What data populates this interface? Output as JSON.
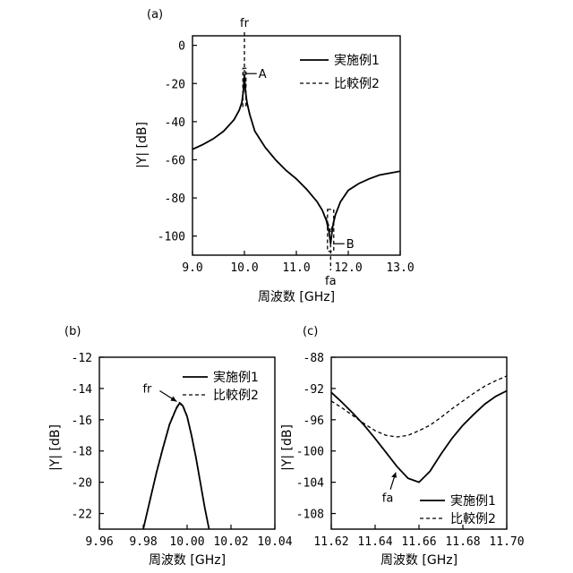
{
  "chart_data": [
    {
      "id": "a",
      "type": "line",
      "panel_label": "(a)",
      "xlabel": "周波数 [GHz]",
      "ylabel": "|Y| [dB]",
      "xlim": [
        9.0,
        13.0
      ],
      "ylim": [
        -110,
        5
      ],
      "xticks": [
        9.0,
        10.0,
        11.0,
        12.0,
        13.0
      ],
      "xtick_labels": [
        "9.0",
        "10.0",
        "11.0",
        "12.0",
        "13.0"
      ],
      "yticks": [
        0,
        -20,
        -40,
        -60,
        -80,
        -100
      ],
      "ytick_labels": [
        "0",
        "-20",
        "-40",
        "-60",
        "-80",
        "-100"
      ],
      "legend_position": "top-right",
      "series": [
        {
          "name": "実施例1",
          "style": "solid",
          "x": [
            9.0,
            9.2,
            9.4,
            9.6,
            9.8,
            9.9,
            9.95,
            9.98,
            10.0,
            10.02,
            10.05,
            10.1,
            10.2,
            10.4,
            10.6,
            10.8,
            11.0,
            11.2,
            11.4,
            11.5,
            11.58,
            11.63,
            11.66,
            11.7,
            11.75,
            11.85,
            12.0,
            12.2,
            12.4,
            12.6,
            12.8,
            13.0
          ],
          "y": [
            -54.5,
            -52.0,
            -49.0,
            -45.0,
            -39.0,
            -34.0,
            -30.0,
            -24.0,
            -15.0,
            -24.0,
            -30.0,
            -36.0,
            -45.0,
            -53.5,
            -60.0,
            -65.5,
            -70.0,
            -75.5,
            -82.0,
            -86.5,
            -92.0,
            -98.0,
            -104.0,
            -95.0,
            -89.0,
            -82.0,
            -76.0,
            -72.5,
            -70.0,
            -68.0,
            -67.0,
            -66.0
          ]
        },
        {
          "name": "比較例2",
          "style": "dashed",
          "x": [
            9.0,
            9.2,
            9.4,
            9.6,
            9.8,
            9.9,
            9.95,
            9.98,
            10.0,
            10.02,
            10.05,
            10.1,
            10.2,
            10.4,
            10.6,
            10.8,
            11.0,
            11.2,
            11.4,
            11.5,
            11.58,
            11.63,
            11.66,
            11.7,
            11.75,
            11.85,
            12.0,
            12.2,
            12.4,
            12.6,
            12.8,
            13.0
          ],
          "y": [
            -54.5,
            -52.0,
            -49.0,
            -45.0,
            -39.0,
            -34.0,
            -30.0,
            -24.0,
            -15.0,
            -24.0,
            -30.0,
            -36.0,
            -45.0,
            -53.5,
            -60.0,
            -65.5,
            -70.0,
            -75.5,
            -82.0,
            -86.5,
            -91.0,
            -95.0,
            -98.0,
            -94.0,
            -89.0,
            -82.0,
            -76.0,
            -72.5,
            -70.0,
            -68.0,
            -67.0,
            -66.0
          ]
        }
      ],
      "annotations": {
        "fr_label": "fr",
        "fr_x": 10.0,
        "fa_label": "fa",
        "fa_x": 11.66,
        "box_a_label": "A",
        "box_a_x": [
          9.97,
          10.03
        ],
        "box_a_y": [
          -32,
          -12
        ],
        "box_b_label": "B",
        "box_b_x": [
          11.6,
          11.72
        ],
        "box_b_y": [
          -108,
          -86
        ]
      }
    },
    {
      "id": "b",
      "type": "line",
      "panel_label": "(b)",
      "xlabel": "周波数 [GHz]",
      "ylabel": "|Y| [dB]",
      "xlim": [
        9.96,
        10.04
      ],
      "ylim": [
        -23,
        -12
      ],
      "xticks": [
        9.96,
        9.98,
        10.0,
        10.02,
        10.04
      ],
      "xtick_labels": [
        "9.96",
        "9.98",
        "10.00",
        "10.02",
        "10.04"
      ],
      "yticks": [
        -12,
        -14,
        -16,
        -18,
        -20,
        -22
      ],
      "ytick_labels": [
        "-12",
        "-14",
        "-16",
        "-18",
        "-20",
        "-22"
      ],
      "legend_position": "top-right",
      "series": [
        {
          "name": "実施例1",
          "style": "solid",
          "x": [
            9.98,
            9.983,
            9.986,
            9.989,
            9.992,
            9.995,
            9.9965,
            9.998,
            10.0,
            10.002,
            10.004,
            10.006,
            10.008,
            10.01
          ],
          "y": [
            -23.0,
            -21.2,
            -19.4,
            -17.8,
            -16.3,
            -15.3,
            -14.95,
            -15.1,
            -15.8,
            -17.0,
            -18.4,
            -20.0,
            -21.6,
            -23.0
          ]
        },
        {
          "name": "比較例2",
          "style": "dashed",
          "x": [
            9.98,
            9.983,
            9.986,
            9.989,
            9.992,
            9.995,
            9.9965,
            9.998,
            10.0,
            10.002,
            10.004,
            10.006,
            10.008,
            10.01
          ],
          "y": [
            -23.0,
            -21.15,
            -19.35,
            -17.75,
            -16.25,
            -15.25,
            -14.9,
            -15.05,
            -15.75,
            -16.95,
            -18.35,
            -19.95,
            -21.55,
            -23.0
          ]
        }
      ],
      "annotations": {
        "fr_label": "fr"
      }
    },
    {
      "id": "c",
      "type": "line",
      "panel_label": "(c)",
      "xlabel": "周波数 [GHz]",
      "ylabel": "|Y| [dB]",
      "xlim": [
        11.62,
        11.7
      ],
      "ylim": [
        -110,
        -88
      ],
      "xticks": [
        11.62,
        11.64,
        11.66,
        11.68,
        11.7
      ],
      "xtick_labels": [
        "11.62",
        "11.64",
        "11.66",
        "11.68",
        "11.70"
      ],
      "yticks": [
        -88,
        -92,
        -96,
        -100,
        -104,
        -108
      ],
      "ytick_labels": [
        "-88",
        "-92",
        "-96",
        "-100",
        "-104",
        "-108"
      ],
      "legend_position": "bottom-right",
      "series": [
        {
          "name": "実施例1",
          "style": "solid",
          "x": [
            11.62,
            11.625,
            11.63,
            11.635,
            11.64,
            11.645,
            11.65,
            11.655,
            11.66,
            11.665,
            11.67,
            11.675,
            11.68,
            11.685,
            11.69,
            11.695,
            11.7
          ],
          "y": [
            -92.5,
            -93.8,
            -95.2,
            -96.7,
            -98.4,
            -100.2,
            -102.0,
            -103.5,
            -104.0,
            -102.6,
            -100.4,
            -98.4,
            -96.7,
            -95.3,
            -94.0,
            -93.0,
            -92.3
          ]
        },
        {
          "name": "比較例2",
          "style": "dashed",
          "x": [
            11.62,
            11.625,
            11.63,
            11.635,
            11.64,
            11.645,
            11.65,
            11.655,
            11.66,
            11.665,
            11.67,
            11.675,
            11.68,
            11.685,
            11.69,
            11.695,
            11.7
          ],
          "y": [
            -93.6,
            -94.5,
            -95.5,
            -96.5,
            -97.4,
            -98.0,
            -98.2,
            -98.0,
            -97.4,
            -96.7,
            -95.7,
            -94.6,
            -93.6,
            -92.6,
            -91.7,
            -91.0,
            -90.4
          ]
        }
      ],
      "annotations": {
        "fa_label": "fa"
      }
    }
  ]
}
